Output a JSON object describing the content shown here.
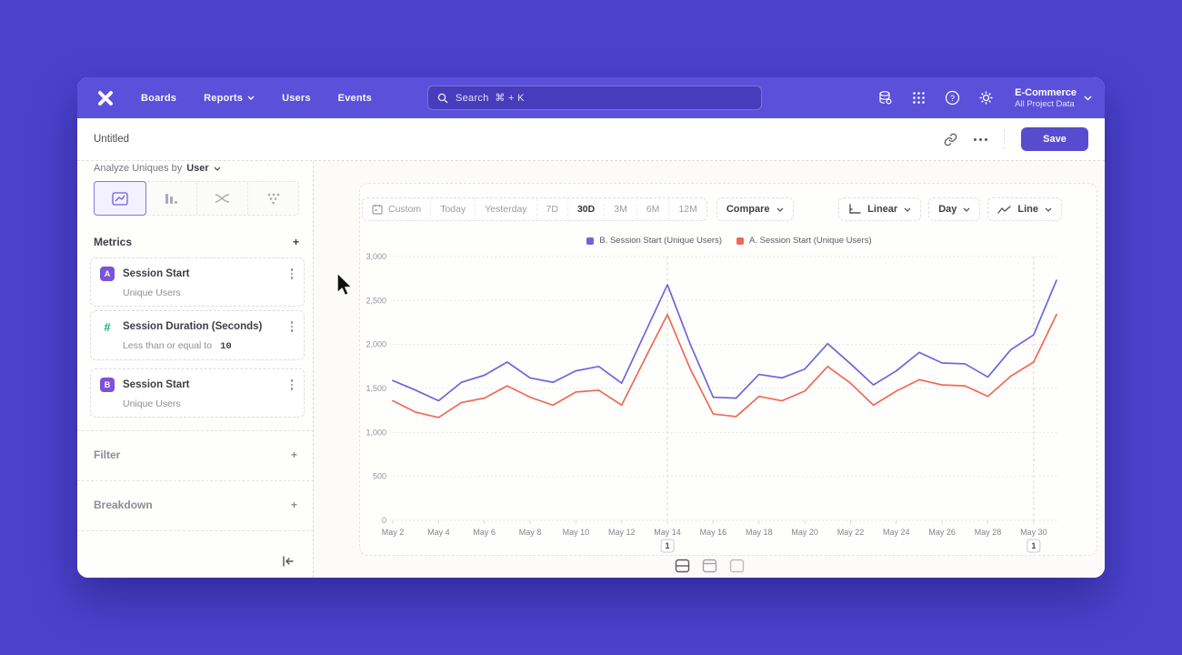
{
  "nav": {
    "items": [
      {
        "label": "Boards"
      },
      {
        "label": "Reports"
      },
      {
        "label": "Users"
      },
      {
        "label": "Events"
      }
    ],
    "search": {
      "placeholder": "Search",
      "shortcut": "⌘ + K"
    },
    "project": {
      "name": "E-Commerce",
      "subtitle": "All Project Data"
    }
  },
  "titlebar": {
    "title": "Untitled",
    "save_label": "Save"
  },
  "sidebar": {
    "analyze": {
      "prefix": "Analyze Uniques by",
      "value": "User"
    },
    "metrics": {
      "header": "Metrics",
      "items": [
        {
          "badge": "A",
          "name": "Session Start",
          "detail": "Unique Users"
        },
        {
          "badge": "#",
          "name": "Session Duration (Seconds)",
          "detail": "Less than or equal to",
          "value": "10"
        },
        {
          "badge": "B",
          "name": "Session Start",
          "detail": "Unique Users"
        }
      ]
    },
    "sections": [
      {
        "label": "Filter"
      },
      {
        "label": "Breakdown"
      }
    ]
  },
  "controls": {
    "date_ranges": [
      "Custom",
      "Today",
      "Yesterday",
      "7D",
      "30D",
      "3M",
      "6M",
      "12M"
    ],
    "active_range": "30D",
    "compare_label": "Compare",
    "scale_label": "Linear",
    "interval_label": "Day",
    "chart_type_label": "Line"
  },
  "chart_data": {
    "type": "line",
    "x": [
      "May 2",
      "May 3",
      "May 4",
      "May 5",
      "May 6",
      "May 7",
      "May 8",
      "May 9",
      "May 10",
      "May 11",
      "May 12",
      "May 13",
      "May 14",
      "May 15",
      "May 16",
      "May 17",
      "May 18",
      "May 19",
      "May 20",
      "May 21",
      "May 22",
      "May 23",
      "May 24",
      "May 25",
      "May 26",
      "May 27",
      "May 28",
      "May 29",
      "May 30",
      "May 31"
    ],
    "xtick_every": 2,
    "ylim": [
      0,
      3000
    ],
    "ytick": 500,
    "grid": true,
    "legend_position": "top-center",
    "series": [
      {
        "name": "B. Session Start (Unique Users)",
        "color": "#6f65d9",
        "values": [
          1590,
          1480,
          1360,
          1570,
          1650,
          1800,
          1620,
          1570,
          1700,
          1750,
          1560,
          2120,
          2680,
          2000,
          1400,
          1390,
          1660,
          1620,
          1720,
          2010,
          1780,
          1540,
          1700,
          1910,
          1790,
          1780,
          1630,
          1940,
          2110,
          2730
        ]
      },
      {
        "name": "A. Session Start (Unique Users)",
        "color": "#ee6a55",
        "values": [
          1360,
          1230,
          1170,
          1340,
          1390,
          1530,
          1400,
          1310,
          1460,
          1480,
          1310,
          1830,
          2340,
          1720,
          1210,
          1180,
          1410,
          1360,
          1470,
          1750,
          1560,
          1310,
          1470,
          1600,
          1540,
          1530,
          1410,
          1640,
          1800,
          2340
        ]
      }
    ],
    "annotations": [
      {
        "index": 12,
        "x": "May 14",
        "label": "1"
      },
      {
        "index": 28,
        "x": "May 30",
        "label": "1"
      }
    ]
  }
}
